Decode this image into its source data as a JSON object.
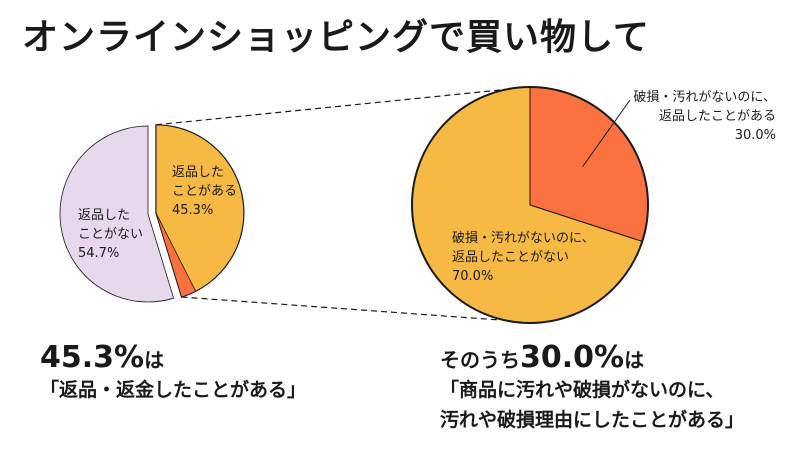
{
  "title": "オンラインショッピングで買い物して",
  "colors": {
    "orange": "#f6b944",
    "lavender": "#e7d8ec",
    "red_orange": "#fb7240",
    "outline": "#1a1a1a"
  },
  "chart_data": [
    {
      "type": "pie",
      "slices": [
        {
          "label_lines": [
            "返品した",
            "ことがある",
            "45.3%"
          ],
          "value": 45.3,
          "color": "#f6b944"
        },
        {
          "label_lines": [
            "返品した",
            "ことがない",
            "54.7%"
          ],
          "value": 54.7,
          "color": "#e7d8ec"
        }
      ]
    },
    {
      "type": "pie",
      "slices": [
        {
          "label_lines": [
            "破損・汚れがないのに、",
            "返品したことがある",
            "30.0%"
          ],
          "value": 30.0,
          "color": "#fb7240"
        },
        {
          "label_lines": [
            "破損・汚れがないのに、",
            "返品したことがない",
            "70.0%"
          ],
          "value": 70.0,
          "color": "#f6b944"
        }
      ]
    }
  ],
  "captions": {
    "left": {
      "percent": "45.3%",
      "particle": "は",
      "line2": "「返品・返金したことがある」"
    },
    "right": {
      "prefix": "そのうち",
      "percent": "30.0%",
      "particle": "は",
      "line2": "「商品に汚れや破損がないのに、",
      "line3": "汚れや破損理由にしたことがある」"
    }
  }
}
